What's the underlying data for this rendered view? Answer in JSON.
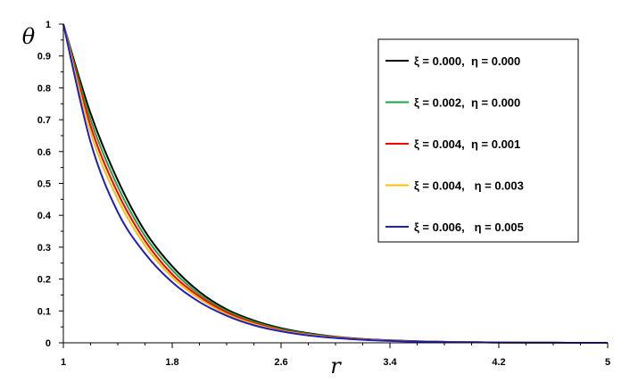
{
  "chart_data": {
    "type": "line",
    "xlabel": "r",
    "ylabel": "θ",
    "xlim": [
      1,
      5
    ],
    "ylim": [
      0,
      1
    ],
    "x_ticks": [
      1,
      1.8,
      2.6,
      3.4,
      4.2,
      5
    ],
    "x_tick_labels": [
      "1",
      "1.8",
      "2.6",
      "3.4",
      "4.2",
      "5"
    ],
    "y_ticks": [
      0,
      0.1,
      0.2,
      0.3,
      0.4,
      0.5,
      0.6,
      0.7,
      0.8,
      0.9,
      1
    ],
    "y_tick_labels": [
      "0",
      "0.1",
      "0.2",
      "0.3",
      "0.4",
      "0.5",
      "0.6",
      "0.7",
      "0.8",
      "0.9",
      "1"
    ],
    "grid": false,
    "legend_position": "top-right",
    "x": [
      1.0,
      1.2,
      1.4,
      1.6,
      1.8,
      2.0,
      2.2,
      2.4,
      2.6,
      2.8,
      3.0,
      3.2,
      3.4,
      3.6,
      3.8,
      4.0,
      4.2,
      4.4,
      4.6,
      4.8,
      5.0
    ],
    "series": [
      {
        "name": "ξ = 0.000,  η = 0.000",
        "color": "#000000",
        "values": [
          1.0,
          0.72,
          0.51,
          0.35,
          0.24,
          0.16,
          0.105,
          0.07,
          0.046,
          0.03,
          0.019,
          0.012,
          0.008,
          0.005,
          0.003,
          0.002,
          0.001,
          0.0005,
          0.0002,
          0.0001,
          0.0
        ]
      },
      {
        "name": "ξ = 0.002,  η = 0.000",
        "color": "#1aa34a",
        "values": [
          1.0,
          0.7,
          0.49,
          0.335,
          0.228,
          0.152,
          0.1,
          0.066,
          0.043,
          0.028,
          0.018,
          0.011,
          0.007,
          0.0045,
          0.0028,
          0.0018,
          0.001,
          0.0005,
          0.0002,
          0.0001,
          0.0
        ]
      },
      {
        "name": "ξ = 0.004,  η = 0.001",
        "color": "#ff0000",
        "values": [
          1.0,
          0.68,
          0.47,
          0.32,
          0.215,
          0.145,
          0.095,
          0.062,
          0.04,
          0.026,
          0.017,
          0.011,
          0.007,
          0.0043,
          0.0027,
          0.0017,
          0.001,
          0.0005,
          0.0002,
          0.0001,
          0.0
        ]
      },
      {
        "name": "ξ = 0.004,   η = 0.003",
        "color": "#ffc000",
        "values": [
          1.0,
          0.66,
          0.45,
          0.305,
          0.205,
          0.138,
          0.09,
          0.059,
          0.038,
          0.025,
          0.016,
          0.01,
          0.0065,
          0.004,
          0.0025,
          0.0016,
          0.001,
          0.0005,
          0.0002,
          0.0001,
          0.0
        ]
      },
      {
        "name": "ξ = 0.006,   η = 0.005",
        "color": "#1f1fbf",
        "values": [
          1.0,
          0.63,
          0.41,
          0.28,
          0.19,
          0.128,
          0.085,
          0.055,
          0.036,
          0.023,
          0.015,
          0.0095,
          0.006,
          0.0038,
          0.0024,
          0.0015,
          0.001,
          0.0005,
          0.0002,
          0.0001,
          0.0
        ]
      }
    ]
  }
}
